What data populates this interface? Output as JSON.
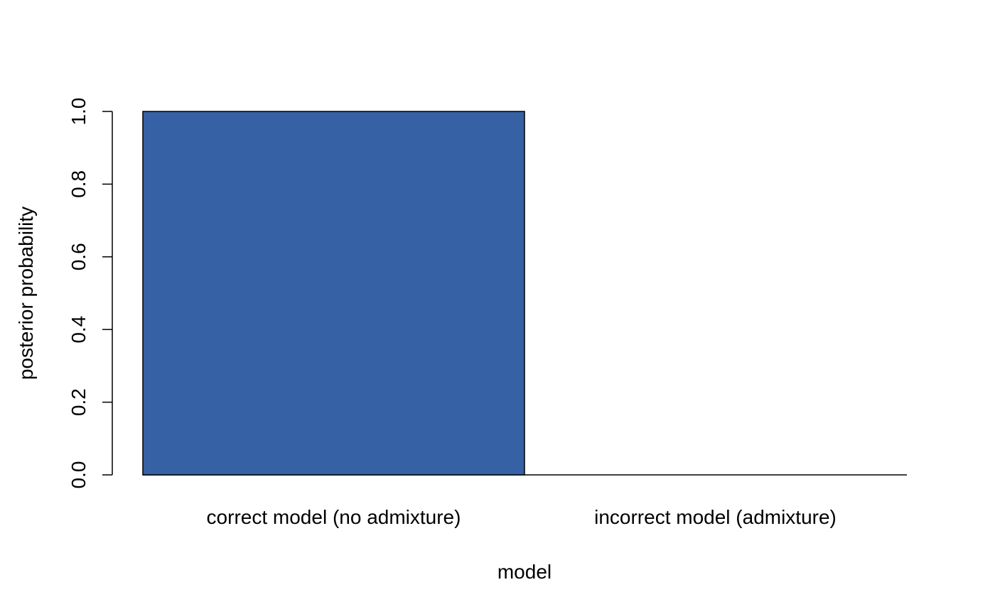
{
  "chart_data": {
    "type": "bar",
    "categories": [
      "correct model (no admixture)",
      "incorrect model (admixture)"
    ],
    "values": [
      1.0,
      0.0
    ],
    "title": "",
    "xlabel": "model",
    "ylabel": "posterior probability",
    "ylim": [
      0,
      1
    ],
    "yticks": [
      "0.0",
      "0.2",
      "0.4",
      "0.6",
      "0.8",
      "1.0"
    ],
    "ytick_values": [
      0,
      0.2,
      0.4,
      0.6,
      0.8,
      1.0
    ],
    "bar_color": "#3661a5",
    "grid": false,
    "legend": "none"
  }
}
